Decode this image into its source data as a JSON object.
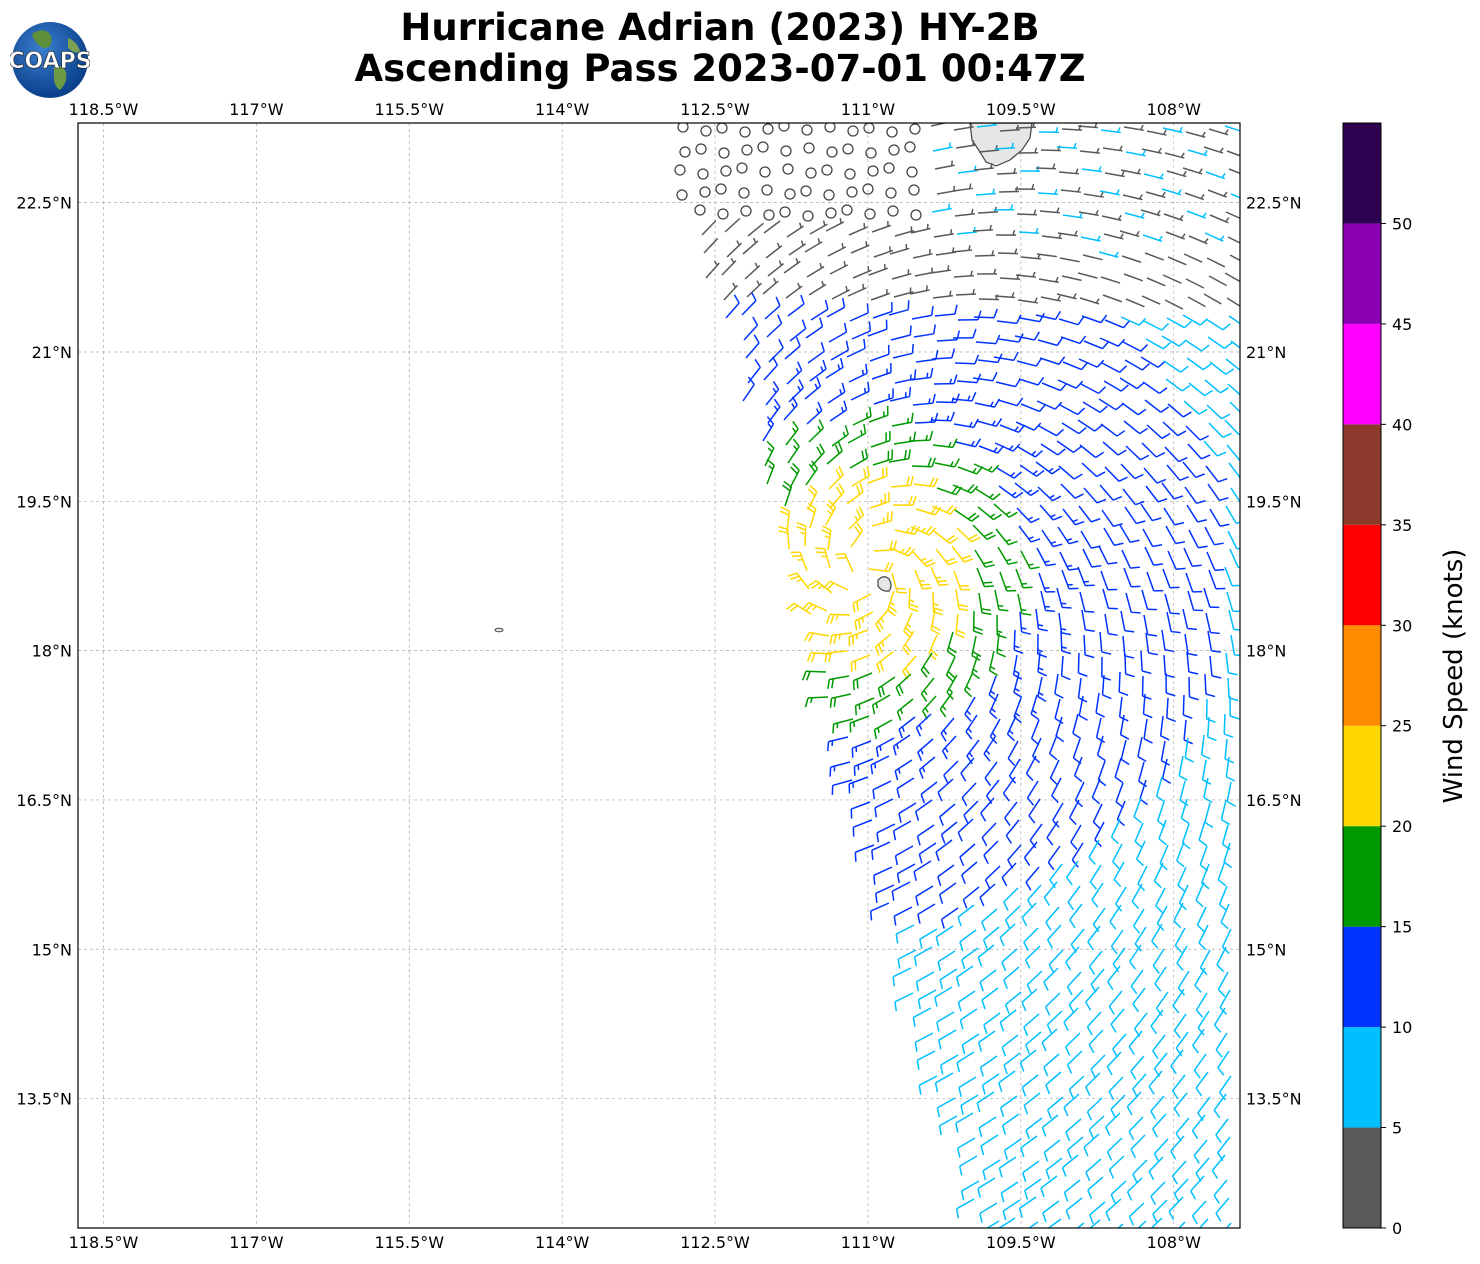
{
  "title_line1": "Hurricane Adrian (2023) HY-2B",
  "title_line2": "Ascending Pass 2023-07-01 00:47Z",
  "logo_text": "COAPS",
  "map": {
    "lon_range": [
      -118.75,
      -107.35
    ],
    "lat_range": [
      12.2,
      23.3
    ],
    "lon_ticks": [
      "118.5°W",
      "117°W",
      "115.5°W",
      "114°W",
      "112.5°W",
      "111°W",
      "109.5°W",
      "108°W"
    ],
    "lon_tick_values": [
      -118.5,
      -117,
      -115.5,
      -114,
      -112.5,
      -111,
      -109.5,
      -108
    ],
    "lat_ticks": [
      "13.5°N",
      "15°N",
      "16.5°N",
      "18°N",
      "19.5°N",
      "21°N",
      "22.5°N"
    ],
    "lat_tick_values": [
      13.5,
      15,
      16.5,
      18,
      19.5,
      21,
      22.5
    ],
    "gridlines": true,
    "storm_center": {
      "lon": -111.0,
      "lat": 18.8
    }
  },
  "colorbar": {
    "label": "Wind Speed (knots)",
    "ticks": [
      "0",
      "5",
      "10",
      "15",
      "20",
      "25",
      "30",
      "35",
      "40",
      "45",
      "50"
    ],
    "tick_values": [
      0,
      5,
      10,
      15,
      20,
      25,
      30,
      35,
      40,
      45,
      50
    ],
    "max": 55,
    "colors": [
      "#595959",
      "#00bfff",
      "#0033ff",
      "#009900",
      "#ffd700",
      "#ff8c00",
      "#ff0000",
      "#8b3a2b",
      "#ff00ff",
      "#8b00b3",
      "#2e0052"
    ]
  }
}
